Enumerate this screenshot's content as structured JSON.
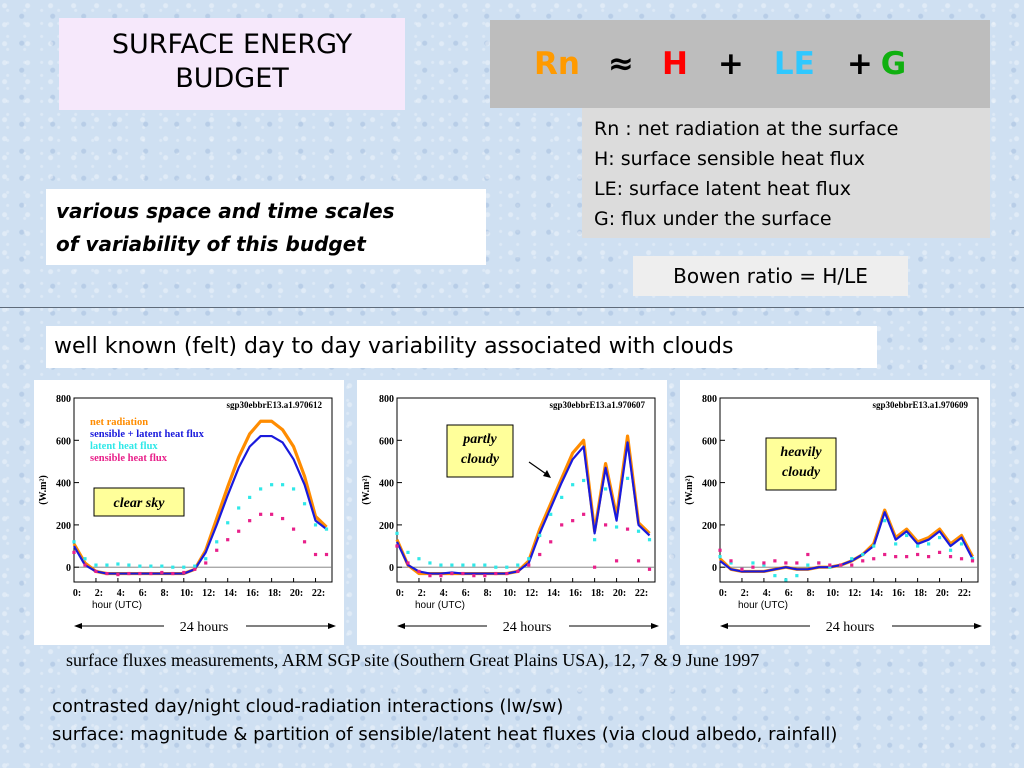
{
  "title": {
    "line1": "SURFACE ENERGY",
    "line2": "BUDGET"
  },
  "equation": {
    "rn": "Rn",
    "approx": "≈",
    "h": "H",
    "plus1": "+",
    "le": "LE",
    "plus2": "+",
    "g": "G",
    "colors": {
      "rn": "#ff9a00",
      "h": "#ff0000",
      "le": "#2fc8ff",
      "g": "#10b010"
    }
  },
  "definitions": [
    "Rn : net radiation at the surface",
    "H: surface sensible heat flux",
    "LE: surface latent heat flux",
    "G: flux under the surface"
  ],
  "scales_text": {
    "line1": "various space and time scales",
    "line2": "of variability of this budget"
  },
  "bowen": "Bowen ratio = H/LE",
  "known_text": "well known (felt) day to day variability associated with clouds",
  "caption": "surface fluxes measurements, ARM SGP site (Southern Great Plains USA), 12, 7 & 9 June 1997",
  "footer": {
    "line1": "contrasted day/night cloud-radiation interactions (lw/sw)",
    "line2": "surface: magnitude & partition of sensible/latent heat fluxes (via cloud albedo, rainfall)"
  },
  "colors": {
    "net": "#ff8c00",
    "total": "#1a1adc",
    "latent": "#30e8e8",
    "sensible": "#e8208a"
  },
  "chart_data": [
    {
      "type": "line",
      "title": "sgp30ebbrE13.a1.970612",
      "xlabel": "hour (UTC)",
      "ylabel": "(W.m²)",
      "ylim": [
        -70,
        800
      ],
      "yticks": [
        0,
        200,
        400,
        600,
        800
      ],
      "xticks": [
        "0:",
        "2:",
        "4:",
        "6:",
        "8:",
        "10:",
        "12:",
        "14:",
        "16:",
        "18:",
        "20:",
        "22:"
      ],
      "span_label": "24 hours",
      "annotation": "clear sky",
      "legend": [
        "net radiation",
        "sensible + latent heat flux",
        "latent heat flux",
        "sensible heat flux"
      ],
      "x": [
        0,
        1,
        2,
        3,
        4,
        5,
        6,
        7,
        8,
        9,
        10,
        11,
        12,
        13,
        14,
        15,
        16,
        17,
        18,
        19,
        20,
        21,
        22,
        23
      ],
      "series": [
        {
          "name": "net radiation",
          "values": [
            110,
            20,
            -20,
            -30,
            -30,
            -30,
            -30,
            -30,
            -30,
            -30,
            -30,
            -10,
            80,
            230,
            380,
            520,
            630,
            690,
            690,
            650,
            570,
            430,
            240,
            190
          ]
        },
        {
          "name": "sensible + latent heat flux",
          "values": [
            100,
            10,
            -20,
            -30,
            -30,
            -30,
            -30,
            -30,
            -30,
            -30,
            -30,
            -10,
            70,
            200,
            340,
            470,
            570,
            620,
            620,
            590,
            510,
            390,
            220,
            180
          ]
        },
        {
          "name": "latent heat flux",
          "values": [
            120,
            40,
            10,
            10,
            15,
            10,
            5,
            5,
            5,
            0,
            0,
            5,
            40,
            120,
            210,
            280,
            330,
            370,
            390,
            390,
            370,
            300,
            200,
            180
          ]
        },
        {
          "name": "sensible heat flux",
          "values": [
            70,
            10,
            -20,
            -30,
            -35,
            -30,
            -30,
            -30,
            -25,
            -30,
            -25,
            -10,
            20,
            80,
            130,
            170,
            220,
            250,
            250,
            230,
            180,
            120,
            60,
            60
          ]
        }
      ]
    },
    {
      "type": "line",
      "title": "sgp30ebbrE13.a1.970607",
      "xlabel": "hour (UTC)",
      "ylabel": "(W.m²)",
      "ylim": [
        -70,
        800
      ],
      "yticks": [
        0,
        200,
        400,
        600,
        800
      ],
      "xticks": [
        "0:",
        "2:",
        "4:",
        "6:",
        "8:",
        "10:",
        "12:",
        "14:",
        "16:",
        "18:",
        "20:",
        "22:"
      ],
      "span_label": "24 hours",
      "annotation": "partly\ncloudy",
      "x": [
        0,
        1,
        2,
        3,
        4,
        5,
        6,
        7,
        8,
        9,
        10,
        11,
        12,
        13,
        14,
        15,
        16,
        17,
        18,
        19,
        20,
        21,
        22,
        23
      ],
      "series": [
        {
          "name": "net radiation",
          "values": [
            130,
            10,
            -30,
            -30,
            -30,
            -30,
            -30,
            -30,
            -30,
            -30,
            -30,
            -20,
            30,
            180,
            300,
            420,
            540,
            600,
            170,
            490,
            240,
            620,
            210,
            160
          ]
        },
        {
          "name": "sensible + latent heat flux",
          "values": [
            120,
            10,
            -20,
            -30,
            -30,
            -25,
            -30,
            -30,
            -30,
            -30,
            -30,
            -20,
            20,
            160,
            280,
            400,
            510,
            570,
            160,
            470,
            220,
            590,
            200,
            150
          ]
        },
        {
          "name": "latent heat flux",
          "values": [
            160,
            70,
            40,
            20,
            10,
            10,
            10,
            10,
            10,
            0,
            0,
            10,
            40,
            150,
            250,
            330,
            390,
            410,
            130,
            370,
            190,
            420,
            170,
            130
          ]
        },
        {
          "name": "sensible heat flux",
          "values": [
            100,
            20,
            -20,
            -40,
            -40,
            -30,
            -30,
            -40,
            -40,
            -30,
            -30,
            -20,
            10,
            60,
            120,
            200,
            220,
            250,
            0,
            200,
            30,
            180,
            30,
            -10
          ]
        }
      ]
    },
    {
      "type": "line",
      "title": "sgp30ebbrE13.a1.970609",
      "xlabel": "hour (UTC)",
      "ylabel": "(W.m²)",
      "ylim": [
        -70,
        800
      ],
      "yticks": [
        0,
        200,
        400,
        600,
        800
      ],
      "xticks": [
        "0:",
        "2:",
        "4:",
        "6:",
        "8:",
        "10:",
        "12:",
        "14:",
        "16:",
        "18:",
        "20:",
        "22:"
      ],
      "span_label": "24 hours",
      "annotation": "heavily\ncloudy",
      "x": [
        0,
        1,
        2,
        3,
        4,
        5,
        6,
        7,
        8,
        9,
        10,
        11,
        12,
        13,
        14,
        15,
        16,
        17,
        18,
        19,
        20,
        21,
        22,
        23
      ],
      "series": [
        {
          "name": "net radiation",
          "values": [
            40,
            -10,
            -20,
            -20,
            -20,
            -10,
            0,
            -10,
            -10,
            0,
            0,
            10,
            30,
            60,
            110,
            270,
            140,
            180,
            120,
            140,
            180,
            110,
            150,
            50
          ]
        },
        {
          "name": "sensible + latent heat flux",
          "values": [
            30,
            -10,
            -20,
            -20,
            -20,
            -10,
            0,
            -10,
            -10,
            0,
            0,
            10,
            30,
            60,
            100,
            260,
            130,
            170,
            110,
            130,
            170,
            100,
            140,
            40
          ]
        },
        {
          "name": "latent heat flux",
          "values": [
            50,
            20,
            -10,
            20,
            10,
            -40,
            -60,
            -40,
            10,
            20,
            0,
            10,
            40,
            60,
            100,
            220,
            110,
            150,
            100,
            110,
            140,
            80,
            110,
            40
          ]
        },
        {
          "name": "sensible heat flux",
          "values": [
            80,
            30,
            -10,
            0,
            20,
            30,
            20,
            20,
            60,
            20,
            10,
            10,
            10,
            30,
            40,
            60,
            50,
            50,
            60,
            50,
            70,
            50,
            40,
            30
          ]
        }
      ]
    }
  ]
}
